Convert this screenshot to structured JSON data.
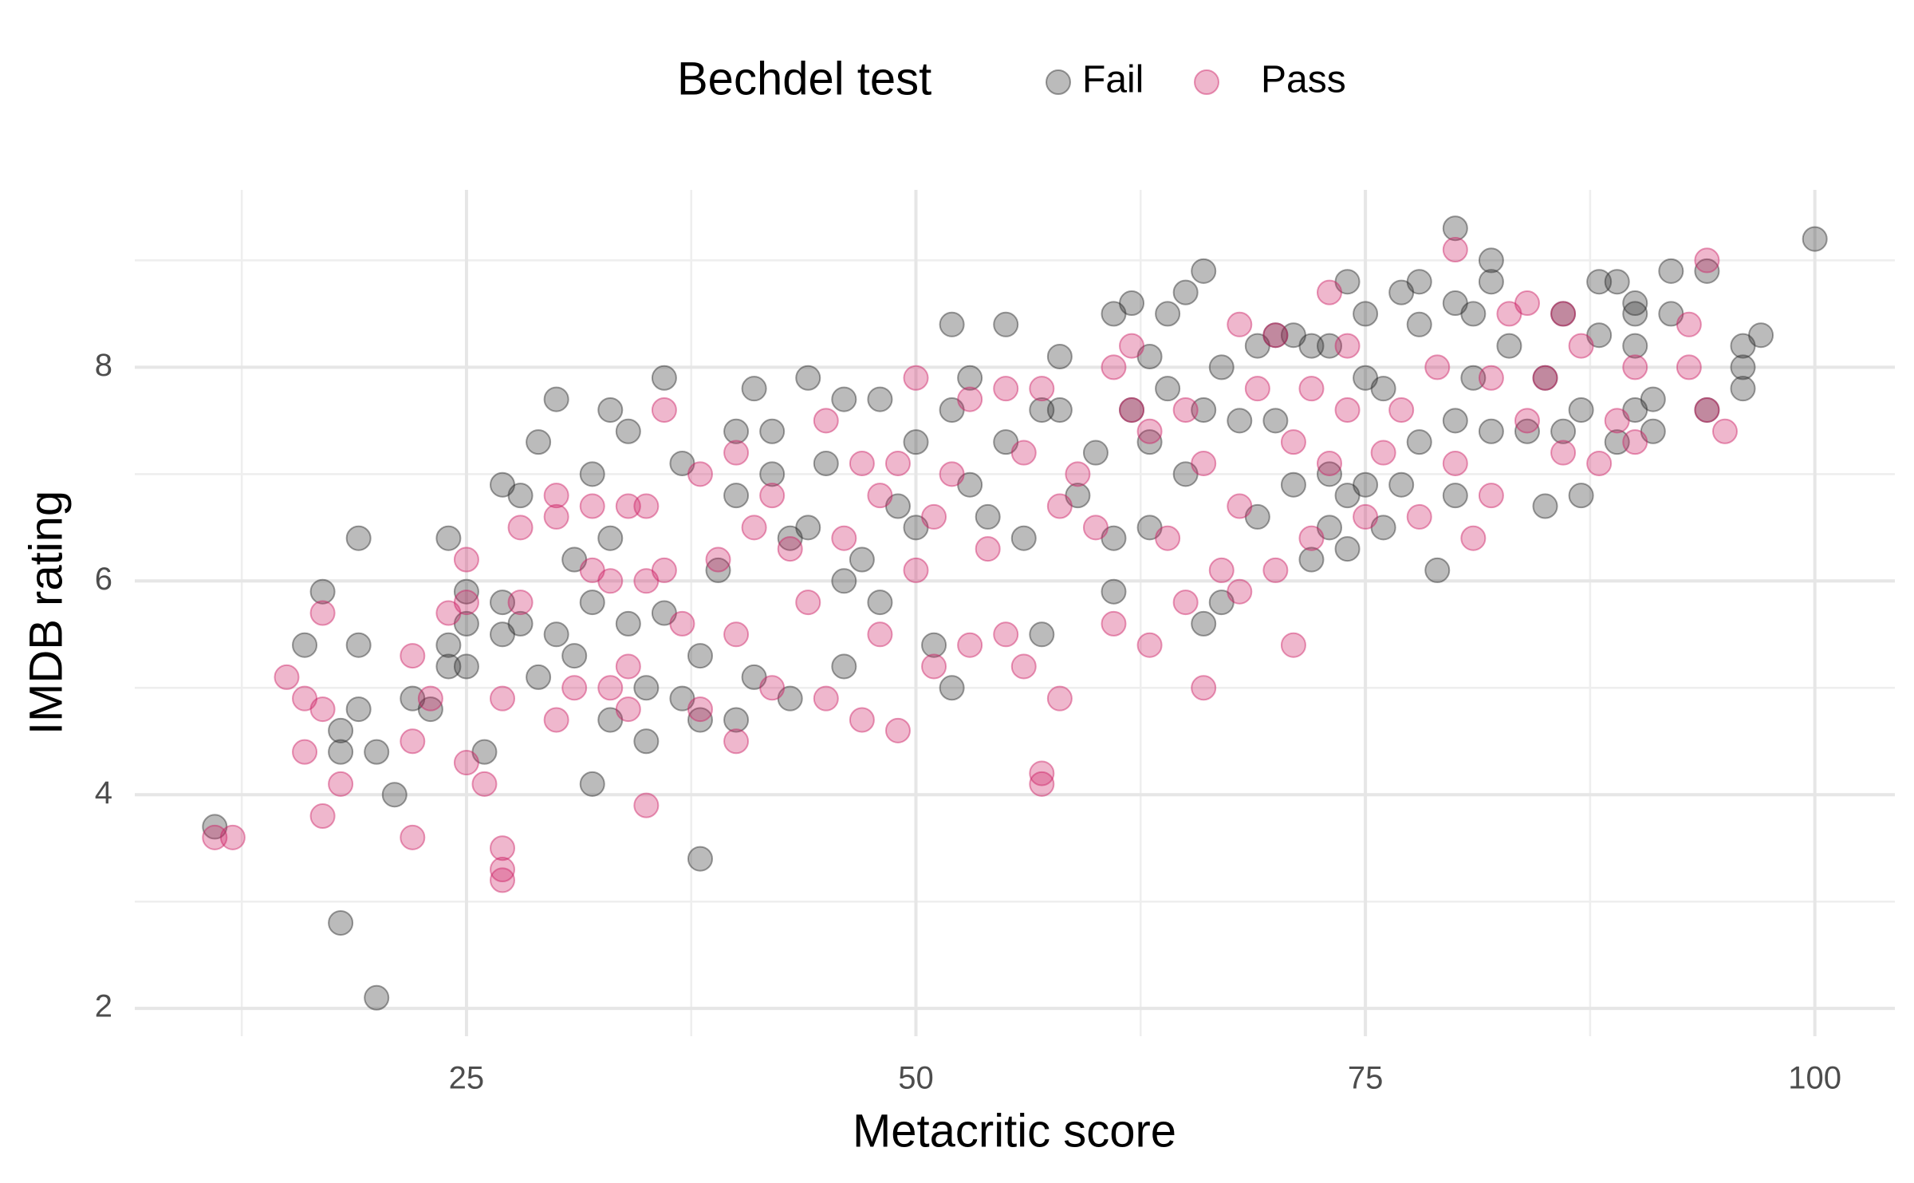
{
  "chart_data": {
    "type": "scatter",
    "x_label": "Metacritic score",
    "y_label": "IMDB rating",
    "legend_title": "Bechdel test",
    "legend_position": "top",
    "grid": true,
    "xlim": [
      6.55,
      104.45
    ],
    "xticks": [
      25,
      50,
      75,
      100
    ],
    "xminor": [
      12.5,
      37.5,
      62.5,
      87.5
    ],
    "ylim": [
      1.74,
      9.66
    ],
    "yticks": [
      2,
      4,
      6,
      8
    ],
    "yminor": [
      3,
      5,
      7,
      9
    ],
    "series": [
      {
        "name": "Fail",
        "color": "#2b2b2b",
        "x": [
          11,
          18,
          20,
          16,
          17,
          18,
          18,
          19,
          19,
          19,
          20,
          21,
          22,
          23,
          24,
          24,
          24,
          25,
          25,
          25,
          26,
          27,
          27,
          27,
          28,
          28,
          29,
          29,
          30,
          30,
          31,
          31,
          32,
          32,
          32,
          33,
          33,
          33,
          34,
          34,
          35,
          35,
          36,
          36,
          37,
          37,
          38,
          38,
          38,
          39,
          40,
          40,
          40,
          41,
          41,
          42,
          42,
          43,
          43,
          44,
          44,
          45,
          46,
          46,
          46,
          47,
          48,
          48,
          49,
          50,
          50,
          51,
          52,
          52,
          52,
          53,
          53,
          54,
          55,
          55,
          56,
          57,
          57,
          58,
          58,
          59,
          60,
          61,
          61,
          61,
          62,
          62,
          63,
          63,
          63,
          64,
          64,
          65,
          65,
          66,
          66,
          66,
          67,
          67,
          68,
          69,
          69,
          70,
          70,
          71,
          71,
          72,
          72,
          73,
          73,
          73,
          74,
          74,
          74,
          75,
          75,
          75,
          76,
          76,
          77,
          77,
          78,
          78,
          78,
          79,
          80,
          80,
          80,
          80,
          81,
          81,
          82,
          82,
          82,
          83,
          84,
          85,
          85,
          86,
          86,
          87,
          87,
          88,
          88,
          89,
          89,
          90,
          90,
          90,
          90,
          91,
          91,
          92,
          92,
          94,
          94,
          96,
          96,
          96,
          97,
          100
        ],
        "values": [
          3.7,
          2.8,
          2.1,
          5.4,
          5.9,
          4.6,
          4.4,
          6.4,
          5.4,
          4.8,
          4.4,
          4.0,
          4.9,
          4.8,
          6.4,
          5.4,
          5.2,
          5.9,
          5.6,
          5.2,
          4.4,
          6.9,
          5.8,
          5.5,
          6.8,
          5.6,
          7.3,
          5.1,
          7.7,
          5.5,
          6.2,
          5.3,
          7.0,
          5.8,
          4.1,
          7.6,
          6.4,
          4.7,
          7.4,
          5.6,
          4.5,
          5.0,
          7.9,
          5.7,
          7.1,
          4.9,
          5.3,
          3.4,
          4.7,
          6.1,
          7.4,
          6.8,
          4.7,
          7.8,
          5.1,
          7.4,
          7.0,
          6.4,
          4.9,
          7.9,
          6.5,
          7.1,
          7.7,
          6.0,
          5.2,
          6.2,
          7.7,
          5.8,
          6.7,
          7.3,
          6.5,
          5.4,
          8.4,
          7.6,
          5.0,
          7.9,
          6.9,
          6.6,
          8.4,
          7.3,
          6.4,
          7.6,
          5.5,
          8.1,
          7.6,
          6.8,
          7.2,
          8.5,
          6.4,
          5.9,
          8.6,
          7.6,
          8.1,
          7.3,
          6.5,
          8.5,
          7.8,
          8.7,
          7.0,
          8.9,
          7.6,
          5.6,
          8.0,
          5.8,
          7.5,
          8.2,
          6.6,
          8.3,
          7.5,
          8.3,
          6.9,
          8.2,
          6.2,
          8.2,
          7.0,
          6.5,
          8.8,
          6.8,
          6.3,
          8.5,
          7.9,
          6.9,
          7.8,
          6.5,
          8.7,
          6.9,
          8.8,
          8.4,
          7.3,
          6.1,
          9.3,
          8.6,
          7.5,
          6.8,
          8.5,
          7.9,
          9.0,
          8.8,
          7.4,
          8.2,
          7.4,
          7.9,
          6.7,
          8.5,
          7.4,
          6.8,
          7.6,
          8.8,
          8.3,
          8.8,
          7.3,
          8.6,
          8.5,
          8.2,
          7.6,
          7.7,
          7.4,
          8.9,
          8.5,
          8.9,
          7.6,
          7.8,
          8.0,
          8.2,
          8.3,
          9.2
        ]
      },
      {
        "name": "Pass",
        "color": "#cc1f64",
        "x": [
          11,
          12,
          15,
          16,
          16,
          17,
          17,
          17,
          18,
          22,
          22,
          22,
          23,
          24,
          25,
          25,
          25,
          26,
          27,
          27,
          27,
          27,
          28,
          28,
          30,
          30,
          30,
          31,
          32,
          32,
          33,
          33,
          34,
          34,
          34,
          35,
          35,
          35,
          36,
          36,
          37,
          38,
          38,
          39,
          40,
          40,
          40,
          41,
          42,
          42,
          43,
          44,
          45,
          45,
          46,
          47,
          47,
          48,
          48,
          49,
          49,
          50,
          50,
          51,
          51,
          52,
          53,
          53,
          54,
          55,
          55,
          56,
          56,
          57,
          57,
          57,
          58,
          58,
          59,
          60,
          61,
          61,
          62,
          62,
          63,
          63,
          64,
          65,
          65,
          66,
          66,
          67,
          68,
          68,
          68,
          69,
          70,
          70,
          71,
          71,
          72,
          72,
          73,
          73,
          74,
          74,
          75,
          76,
          77,
          78,
          79,
          80,
          80,
          81,
          82,
          82,
          83,
          84,
          84,
          85,
          86,
          86,
          87,
          88,
          89,
          90,
          90,
          93,
          93,
          94,
          94,
          95
        ],
        "values": [
          3.6,
          3.6,
          5.1,
          4.9,
          4.4,
          5.7,
          4.8,
          3.8,
          4.1,
          5.3,
          4.5,
          3.6,
          4.9,
          5.7,
          6.2,
          5.8,
          4.3,
          4.1,
          4.9,
          3.5,
          3.3,
          3.2,
          6.5,
          5.8,
          6.8,
          6.6,
          4.7,
          5.0,
          6.7,
          6.1,
          6.0,
          5.0,
          6.7,
          5.2,
          4.8,
          6.7,
          6.0,
          3.9,
          7.6,
          6.1,
          5.6,
          7.0,
          4.8,
          6.2,
          7.2,
          5.5,
          4.5,
          6.5,
          6.8,
          5.0,
          6.3,
          5.8,
          7.5,
          4.9,
          6.4,
          7.1,
          4.7,
          6.8,
          5.5,
          7.1,
          4.6,
          7.9,
          6.1,
          6.6,
          5.2,
          7.0,
          7.7,
          5.4,
          6.3,
          7.8,
          5.5,
          7.2,
          5.2,
          7.8,
          4.2,
          4.1,
          6.7,
          4.9,
          7.0,
          6.5,
          8.0,
          5.6,
          8.2,
          7.6,
          7.4,
          5.4,
          6.4,
          7.6,
          5.8,
          7.1,
          5.0,
          6.1,
          8.4,
          6.7,
          5.9,
          7.8,
          8.3,
          6.1,
          7.3,
          5.4,
          7.8,
          6.4,
          8.7,
          7.1,
          8.2,
          7.6,
          6.6,
          7.2,
          7.6,
          6.6,
          8.0,
          9.1,
          7.1,
          6.4,
          7.9,
          6.8,
          8.5,
          8.6,
          7.5,
          7.9,
          8.5,
          7.2,
          8.2,
          7.1,
          7.5,
          8.0,
          7.3,
          8.0,
          8.4,
          9.0,
          7.6,
          7.4
        ]
      }
    ]
  }
}
